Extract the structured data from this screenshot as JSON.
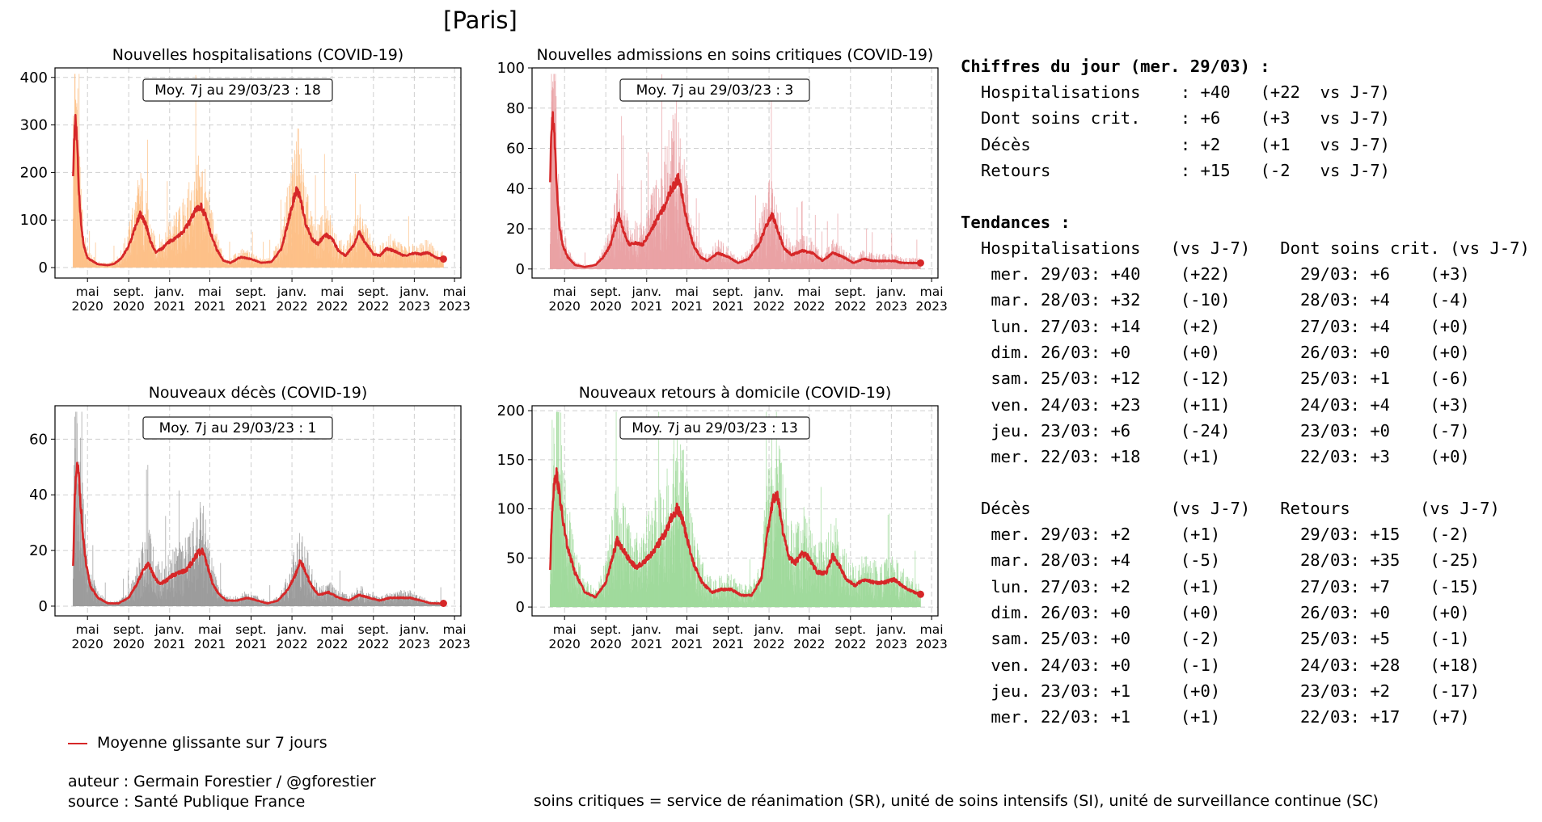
{
  "title": "[Paris]",
  "colors": {
    "hosp": "#fdbf86",
    "rea": "#e9a0a3",
    "dc": "#9a9a9a",
    "rad": "#9fd99a",
    "mean": "#d62728"
  },
  "chart_data": [
    {
      "id": "hosp",
      "type": "bar",
      "title": "Nouvelles hospitalisations (COVID-19)",
      "annotation": "Moy. 7j au 29/03/23 : 18",
      "yticks": [
        0,
        100,
        200,
        300,
        400
      ],
      "ylim": [
        -22,
        420
      ],
      "xticks": [
        {
          "m": "mai",
          "y": "2020"
        },
        {
          "m": "sept.",
          "y": "2020"
        },
        {
          "m": "janv.",
          "y": "2021"
        },
        {
          "m": "mai",
          "y": "2021"
        },
        {
          "m": "sept.",
          "y": "2021"
        },
        {
          "m": "janv.",
          "y": "2022"
        },
        {
          "m": "mai",
          "y": "2022"
        },
        {
          "m": "sept.",
          "y": "2022"
        },
        {
          "m": "janv.",
          "y": "2023"
        },
        {
          "m": "mai",
          "y": "2023"
        }
      ],
      "color": "#fdbf86",
      "series_label": "Moyenne glissante sur 7 jours",
      "mean_points": [
        [
          "2020-03-19",
          183
        ],
        [
          "2020-03-22",
          270
        ],
        [
          "2020-03-26",
          320
        ],
        [
          "2020-03-30",
          275
        ],
        [
          "2020-04-05",
          170
        ],
        [
          "2020-04-12",
          90
        ],
        [
          "2020-04-20",
          45
        ],
        [
          "2020-05-01",
          20
        ],
        [
          "2020-06-01",
          7
        ],
        [
          "2020-07-01",
          5
        ],
        [
          "2020-07-20",
          8
        ],
        [
          "2020-08-10",
          20
        ],
        [
          "2020-09-01",
          45
        ],
        [
          "2020-09-20",
          85
        ],
        [
          "2020-10-05",
          113
        ],
        [
          "2020-10-20",
          95
        ],
        [
          "2020-11-05",
          55
        ],
        [
          "2020-11-20",
          32
        ],
        [
          "2020-12-10",
          40
        ],
        [
          "2021-01-01",
          55
        ],
        [
          "2021-01-20",
          62
        ],
        [
          "2021-02-10",
          75
        ],
        [
          "2021-03-01",
          95
        ],
        [
          "2021-03-20",
          120
        ],
        [
          "2021-04-05",
          128
        ],
        [
          "2021-04-20",
          105
        ],
        [
          "2021-05-05",
          70
        ],
        [
          "2021-05-20",
          40
        ],
        [
          "2021-06-10",
          15
        ],
        [
          "2021-07-01",
          10
        ],
        [
          "2021-08-01",
          22
        ],
        [
          "2021-09-01",
          18
        ],
        [
          "2021-10-01",
          10
        ],
        [
          "2021-11-01",
          12
        ],
        [
          "2021-12-01",
          40
        ],
        [
          "2021-12-20",
          95
        ],
        [
          "2022-01-05",
          140
        ],
        [
          "2022-01-15",
          163
        ],
        [
          "2022-01-25",
          150
        ],
        [
          "2022-02-10",
          95
        ],
        [
          "2022-03-01",
          60
        ],
        [
          "2022-03-20",
          50
        ],
        [
          "2022-04-10",
          70
        ],
        [
          "2022-05-01",
          60
        ],
        [
          "2022-05-20",
          35
        ],
        [
          "2022-06-10",
          25
        ],
        [
          "2022-07-05",
          48
        ],
        [
          "2022-07-20",
          75
        ],
        [
          "2022-08-05",
          55
        ],
        [
          "2022-09-01",
          28
        ],
        [
          "2022-09-20",
          25
        ],
        [
          "2022-10-10",
          40
        ],
        [
          "2022-11-01",
          35
        ],
        [
          "2022-12-01",
          25
        ],
        [
          "2023-01-01",
          30
        ],
        [
          "2023-01-20",
          28
        ],
        [
          "2023-02-10",
          32
        ],
        [
          "2023-02-25",
          25
        ],
        [
          "2023-03-10",
          20
        ],
        [
          "2023-03-29",
          18
        ]
      ]
    },
    {
      "id": "rea",
      "type": "bar",
      "title": "Nouvelles admissions en soins critiques (COVID-19)",
      "annotation": "Moy. 7j au 29/03/23 : 3",
      "yticks": [
        0,
        20,
        40,
        60,
        80,
        100
      ],
      "ylim": [
        -4.5,
        100
      ],
      "xticks": [
        {
          "m": "mai",
          "y": "2020"
        },
        {
          "m": "sept.",
          "y": "2020"
        },
        {
          "m": "janv.",
          "y": "2021"
        },
        {
          "m": "mai",
          "y": "2021"
        },
        {
          "m": "sept.",
          "y": "2021"
        },
        {
          "m": "janv.",
          "y": "2022"
        },
        {
          "m": "mai",
          "y": "2022"
        },
        {
          "m": "sept.",
          "y": "2022"
        },
        {
          "m": "janv.",
          "y": "2023"
        },
        {
          "m": "mai",
          "y": "2023"
        }
      ],
      "color": "#e9a0a3",
      "series_label": "Moyenne glissante sur 7 jours",
      "mean_points": [
        [
          "2020-03-19",
          42
        ],
        [
          "2020-03-23",
          70
        ],
        [
          "2020-03-27",
          76
        ],
        [
          "2020-04-01",
          65
        ],
        [
          "2020-04-08",
          40
        ],
        [
          "2020-04-15",
          22
        ],
        [
          "2020-04-25",
          12
        ],
        [
          "2020-05-10",
          6
        ],
        [
          "2020-06-01",
          2
        ],
        [
          "2020-07-01",
          1
        ],
        [
          "2020-08-01",
          2
        ],
        [
          "2020-08-25",
          6
        ],
        [
          "2020-09-15",
          12
        ],
        [
          "2020-10-01",
          22
        ],
        [
          "2020-10-10",
          27
        ],
        [
          "2020-10-25",
          18
        ],
        [
          "2020-11-10",
          12
        ],
        [
          "2020-12-01",
          13
        ],
        [
          "2020-12-20",
          12
        ],
        [
          "2021-01-10",
          18
        ],
        [
          "2021-02-01",
          25
        ],
        [
          "2021-02-20",
          30
        ],
        [
          "2021-03-10",
          38
        ],
        [
          "2021-03-25",
          42
        ],
        [
          "2021-04-05",
          45
        ],
        [
          "2021-04-15",
          38
        ],
        [
          "2021-05-01",
          24
        ],
        [
          "2021-05-20",
          12
        ],
        [
          "2021-06-10",
          6
        ],
        [
          "2021-07-01",
          4
        ],
        [
          "2021-08-01",
          8
        ],
        [
          "2021-09-01",
          6
        ],
        [
          "2021-10-01",
          3
        ],
        [
          "2021-11-01",
          5
        ],
        [
          "2021-12-01",
          12
        ],
        [
          "2021-12-20",
          20
        ],
        [
          "2022-01-10",
          27
        ],
        [
          "2022-01-25",
          20
        ],
        [
          "2022-02-15",
          10
        ],
        [
          "2022-03-10",
          7
        ],
        [
          "2022-04-10",
          9
        ],
        [
          "2022-05-10",
          8
        ],
        [
          "2022-06-10",
          4
        ],
        [
          "2022-07-10",
          8
        ],
        [
          "2022-08-10",
          6
        ],
        [
          "2022-09-10",
          3
        ],
        [
          "2022-10-10",
          5
        ],
        [
          "2022-11-10",
          4
        ],
        [
          "2022-12-10",
          4
        ],
        [
          "2023-01-10",
          4
        ],
        [
          "2023-02-01",
          3
        ],
        [
          "2023-03-01",
          3
        ],
        [
          "2023-03-29",
          3
        ]
      ]
    },
    {
      "id": "dc",
      "type": "bar",
      "title": "Nouveaux décès (COVID-19)",
      "annotation": "Moy. 7j au 29/03/23 : 1",
      "yticks": [
        0,
        20,
        40,
        60
      ],
      "ylim": [
        -3.5,
        72
      ],
      "xticks": [
        {
          "m": "mai",
          "y": "2020"
        },
        {
          "m": "sept.",
          "y": "2020"
        },
        {
          "m": "janv.",
          "y": "2021"
        },
        {
          "m": "mai",
          "y": "2021"
        },
        {
          "m": "sept.",
          "y": "2021"
        },
        {
          "m": "janv.",
          "y": "2022"
        },
        {
          "m": "mai",
          "y": "2022"
        },
        {
          "m": "sept.",
          "y": "2022"
        },
        {
          "m": "janv.",
          "y": "2023"
        },
        {
          "m": "mai",
          "y": "2023"
        }
      ],
      "color": "#9a9a9a",
      "series_label": "Moyenne glissante sur 7 jours",
      "mean_points": [
        [
          "2020-03-19",
          14
        ],
        [
          "2020-03-24",
          38
        ],
        [
          "2020-03-30",
          50
        ],
        [
          "2020-04-04",
          48
        ],
        [
          "2020-04-10",
          38
        ],
        [
          "2020-04-18",
          24
        ],
        [
          "2020-04-28",
          14
        ],
        [
          "2020-05-10",
          7
        ],
        [
          "2020-06-01",
          3
        ],
        [
          "2020-07-01",
          1
        ],
        [
          "2020-08-01",
          1
        ],
        [
          "2020-09-01",
          3
        ],
        [
          "2020-09-25",
          8
        ],
        [
          "2020-10-15",
          13
        ],
        [
          "2020-10-30",
          15
        ],
        [
          "2020-11-15",
          11
        ],
        [
          "2020-12-01",
          8
        ],
        [
          "2020-12-20",
          9
        ],
        [
          "2021-01-10",
          11
        ],
        [
          "2021-02-01",
          12
        ],
        [
          "2021-02-20",
          13
        ],
        [
          "2021-03-10",
          16
        ],
        [
          "2021-03-25",
          19
        ],
        [
          "2021-04-10",
          20
        ],
        [
          "2021-04-25",
          14
        ],
        [
          "2021-05-10",
          8
        ],
        [
          "2021-05-30",
          4
        ],
        [
          "2021-06-20",
          2
        ],
        [
          "2021-07-20",
          2
        ],
        [
          "2021-08-20",
          3
        ],
        [
          "2021-09-20",
          2
        ],
        [
          "2021-10-20",
          1
        ],
        [
          "2021-11-20",
          2
        ],
        [
          "2021-12-20",
          6
        ],
        [
          "2022-01-10",
          11
        ],
        [
          "2022-01-25",
          16
        ],
        [
          "2022-02-05",
          14
        ],
        [
          "2022-02-25",
          8
        ],
        [
          "2022-03-20",
          4
        ],
        [
          "2022-04-20",
          5
        ],
        [
          "2022-05-20",
          3
        ],
        [
          "2022-06-20",
          2
        ],
        [
          "2022-07-20",
          4
        ],
        [
          "2022-08-20",
          3
        ],
        [
          "2022-09-20",
          2
        ],
        [
          "2022-10-20",
          3
        ],
        [
          "2022-11-20",
          3
        ],
        [
          "2022-12-20",
          3
        ],
        [
          "2023-01-20",
          2
        ],
        [
          "2023-02-20",
          1
        ],
        [
          "2023-03-29",
          1
        ]
      ]
    },
    {
      "id": "rad",
      "type": "bar",
      "title": "Nouveaux retours à domicile (COVID-19)",
      "annotation": "Moy. 7j au 29/03/23 : 13",
      "yticks": [
        0,
        50,
        100,
        150,
        200
      ],
      "ylim": [
        -9,
        205
      ],
      "xticks": [
        {
          "m": "mai",
          "y": "2020"
        },
        {
          "m": "sept.",
          "y": "2020"
        },
        {
          "m": "janv.",
          "y": "2021"
        },
        {
          "m": "mai",
          "y": "2021"
        },
        {
          "m": "sept.",
          "y": "2021"
        },
        {
          "m": "janv.",
          "y": "2022"
        },
        {
          "m": "mai",
          "y": "2022"
        },
        {
          "m": "sept.",
          "y": "2022"
        },
        {
          "m": "janv.",
          "y": "2023"
        },
        {
          "m": "mai",
          "y": "2023"
        }
      ],
      "color": "#9fd99a",
      "series_label": "Moyenne glissante sur 7 jours",
      "mean_points": [
        [
          "2020-03-19",
          38
        ],
        [
          "2020-03-25",
          100
        ],
        [
          "2020-04-01",
          130
        ],
        [
          "2020-04-07",
          136
        ],
        [
          "2020-04-14",
          120
        ],
        [
          "2020-04-25",
          90
        ],
        [
          "2020-05-10",
          60
        ],
        [
          "2020-06-01",
          35
        ],
        [
          "2020-07-01",
          15
        ],
        [
          "2020-08-01",
          10
        ],
        [
          "2020-09-01",
          25
        ],
        [
          "2020-09-20",
          50
        ],
        [
          "2020-10-05",
          68
        ],
        [
          "2020-10-20",
          60
        ],
        [
          "2020-11-10",
          48
        ],
        [
          "2020-12-01",
          40
        ],
        [
          "2020-12-20",
          45
        ],
        [
          "2021-01-10",
          52
        ],
        [
          "2021-02-01",
          62
        ],
        [
          "2021-02-25",
          75
        ],
        [
          "2021-03-15",
          90
        ],
        [
          "2021-04-01",
          100
        ],
        [
          "2021-04-15",
          92
        ],
        [
          "2021-05-01",
          70
        ],
        [
          "2021-05-20",
          45
        ],
        [
          "2021-06-15",
          25
        ],
        [
          "2021-07-15",
          15
        ],
        [
          "2021-08-10",
          18
        ],
        [
          "2021-09-10",
          18
        ],
        [
          "2021-10-10",
          12
        ],
        [
          "2021-11-10",
          12
        ],
        [
          "2021-12-10",
          30
        ],
        [
          "2021-12-25",
          70
        ],
        [
          "2022-01-10",
          105
        ],
        [
          "2022-01-25",
          117
        ],
        [
          "2022-02-10",
          80
        ],
        [
          "2022-03-01",
          50
        ],
        [
          "2022-03-20",
          45
        ],
        [
          "2022-04-10",
          55
        ],
        [
          "2022-05-01",
          50
        ],
        [
          "2022-05-25",
          35
        ],
        [
          "2022-06-20",
          35
        ],
        [
          "2022-07-10",
          52
        ],
        [
          "2022-07-25",
          45
        ],
        [
          "2022-08-20",
          28
        ],
        [
          "2022-09-15",
          22
        ],
        [
          "2022-10-10",
          28
        ],
        [
          "2022-11-10",
          25
        ],
        [
          "2022-12-10",
          25
        ],
        [
          "2023-01-10",
          28
        ],
        [
          "2023-02-01",
          22
        ],
        [
          "2023-02-20",
          18
        ],
        [
          "2023-03-10",
          15
        ],
        [
          "2023-03-29",
          13
        ]
      ]
    }
  ],
  "panel": {
    "daily_title": "Chiffres du jour (mer. 29/03) :",
    "daily_rows": [
      "Hospitalisations    : +40   (+22  vs J-7)",
      "Dont soins crit.    : +6    (+3   vs J-7)",
      "Décès               : +2    (+1   vs J-7)",
      "Retours             : +15   (-2   vs J-7)"
    ],
    "trends_title": "Tendances :",
    "hosp_header": "Hospitalisations   (vs J-7)   Dont soins crit. (vs J-7)",
    "hosp_rows": [
      " mer. 29/03: +40    (+22)       29/03: +6    (+3)",
      " mar. 28/03: +32    (-10)       28/03: +4    (-4)",
      " lun. 27/03: +14    (+2)        27/03: +4    (+0)",
      " dim. 26/03: +0     (+0)        26/03: +0    (+0)",
      " sam. 25/03: +12    (-12)       25/03: +1    (-6)",
      " ven. 24/03: +23    (+11)       24/03: +4    (+3)",
      " jeu. 23/03: +6     (-24)       23/03: +0    (-7)",
      " mer. 22/03: +18    (+1)        22/03: +3    (+0)"
    ],
    "dc_header": "Décès              (vs J-7)   Retours       (vs J-7)",
    "dc_rows": [
      " mer. 29/03: +2     (+1)        29/03: +15   (-2)",
      " mar. 28/03: +4     (-5)        28/03: +35   (-25)",
      " lun. 27/03: +2     (+1)        27/03: +7    (-15)",
      " dim. 26/03: +0     (+0)        26/03: +0    (+0)",
      " sam. 25/03: +0     (-2)        25/03: +5    (-1)",
      " ven. 24/03: +0     (-1)        24/03: +28   (+18)",
      " jeu. 23/03: +1     (+0)        23/03: +2    (-17)",
      " mer. 22/03: +1     (+1)        22/03: +17   (+7)"
    ]
  },
  "legend_label": "Moyenne glissante sur 7 jours",
  "credits": {
    "author": "auteur : Germain Forestier / @gforestier",
    "source": "source : Santé Publique France"
  },
  "footnote": "soins critiques = service de réanimation (SR), unité de soins intensifs (SI), unité de surveillance continue (SC)"
}
